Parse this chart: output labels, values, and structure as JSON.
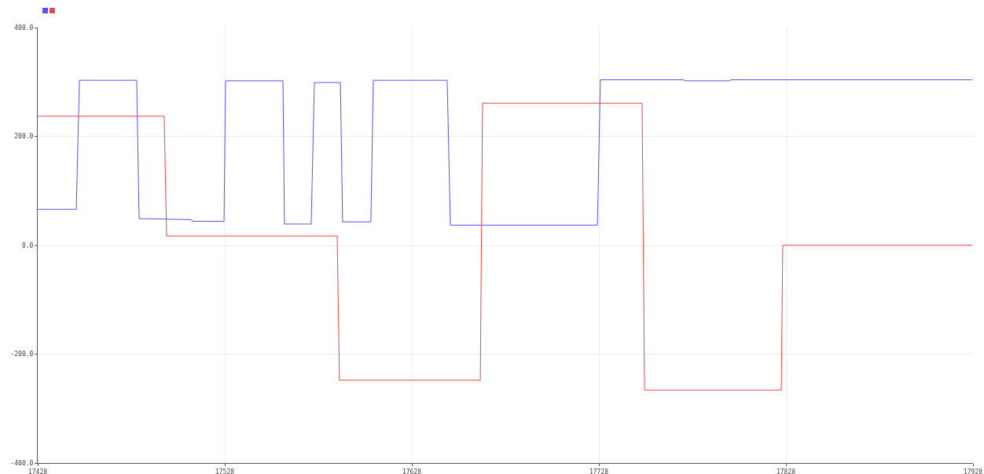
{
  "chart_data": {
    "type": "line",
    "xlim": [
      17428,
      17928
    ],
    "xticks": [
      17428,
      17528,
      17628,
      17728,
      17828,
      17928
    ],
    "ylim": [
      -400,
      400
    ],
    "yticks": [
      {
        "value": -400,
        "label": "-400.0"
      },
      {
        "value": -200,
        "label": "-200.0"
      },
      {
        "value": 0,
        "label": "0.0"
      },
      {
        "value": 200,
        "label": "200.0"
      },
      {
        "value": 400,
        "label": "400.0"
      }
    ],
    "grid": true,
    "marker": "none",
    "line_style": "solid",
    "series": [
      {
        "color": "#5555ee",
        "x": [
          17428,
          17448.6,
          17450.3,
          17480.9,
          17482.2,
          17509.9,
          17511.2,
          17527.6,
          17528.4,
          17559.1,
          17559.9,
          17574.2,
          17575.9,
          17589.8,
          17591,
          17606.1,
          17607.4,
          17646.9,
          17648.6,
          17727.2,
          17728.8,
          17773.4,
          17774.2,
          17797.7,
          17798.5,
          17927.6
        ],
        "values": [
          66,
          66,
          303,
          303,
          49,
          47,
          44,
          44,
          302,
          302,
          39,
          39,
          299,
          299,
          43,
          43,
          303,
          303,
          37,
          37,
          304,
          304,
          302,
          302,
          304,
          304
        ]
      },
      {
        "color": "#ee4444",
        "x": [
          17428,
          17495.6,
          17496.9,
          17588.1,
          17589.3,
          17664.6,
          17665.8,
          17751.1,
          17752.4,
          17825.5,
          17826.3,
          17927.6
        ],
        "values": [
          237,
          237,
          17,
          17,
          -248,
          -248,
          261,
          261,
          -266,
          -266,
          0,
          0
        ]
      }
    ]
  }
}
